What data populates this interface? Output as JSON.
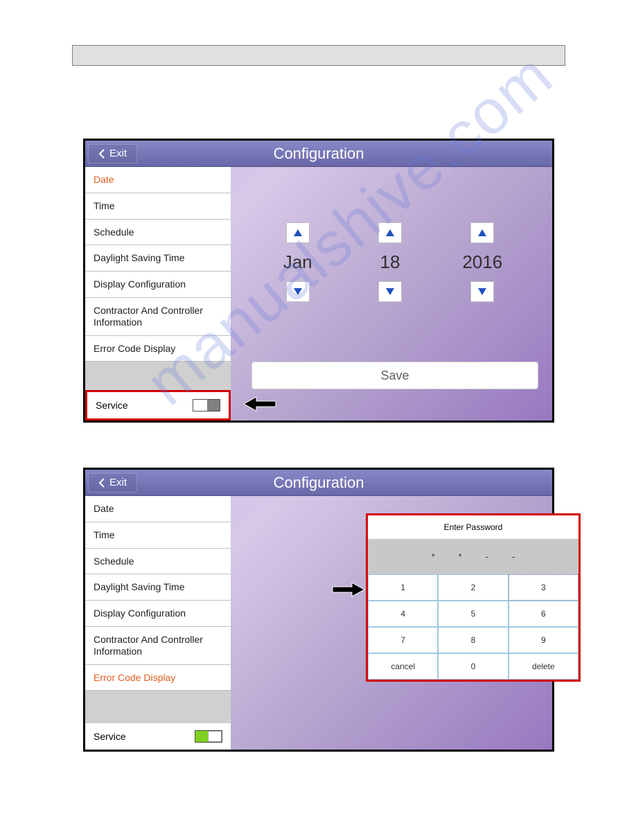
{
  "watermark": "manualshive.com",
  "screen1": {
    "title": "Configuration",
    "exit_label": "Exit",
    "menu": [
      {
        "label": "Date",
        "active": true
      },
      {
        "label": "Time",
        "active": false
      },
      {
        "label": "Schedule",
        "active": false
      },
      {
        "label": "Daylight Saving Time",
        "active": false
      },
      {
        "label": "Display Configuration",
        "active": false
      },
      {
        "label": "Contractor And Controller Information",
        "active": false
      },
      {
        "label": "Error Code Display",
        "active": false
      }
    ],
    "service_label": "Service",
    "service_on": false,
    "date": {
      "month": "Jan",
      "day": "18",
      "year": "2016"
    },
    "save_label": "Save",
    "colors": {
      "arrow_fill": "#2050c0"
    }
  },
  "screen2": {
    "title": "Configuration",
    "exit_label": "Exit",
    "menu": [
      {
        "label": "Date",
        "active": false
      },
      {
        "label": "Time",
        "active": false
      },
      {
        "label": "Schedule",
        "active": false
      },
      {
        "label": "Daylight Saving Time",
        "active": false
      },
      {
        "label": "Display Configuration",
        "active": false
      },
      {
        "label": "Contractor And Controller Information",
        "active": false
      },
      {
        "label": "Error Code Display",
        "active": true
      }
    ],
    "service_label": "Service",
    "service_on": true,
    "keypad": {
      "title": "Enter Password",
      "display": [
        "*",
        "*",
        "-",
        "-"
      ],
      "keys": [
        "1",
        "2",
        "3",
        "4",
        "5",
        "6",
        "7",
        "8",
        "9",
        "cancel",
        "0",
        "delete"
      ]
    }
  }
}
